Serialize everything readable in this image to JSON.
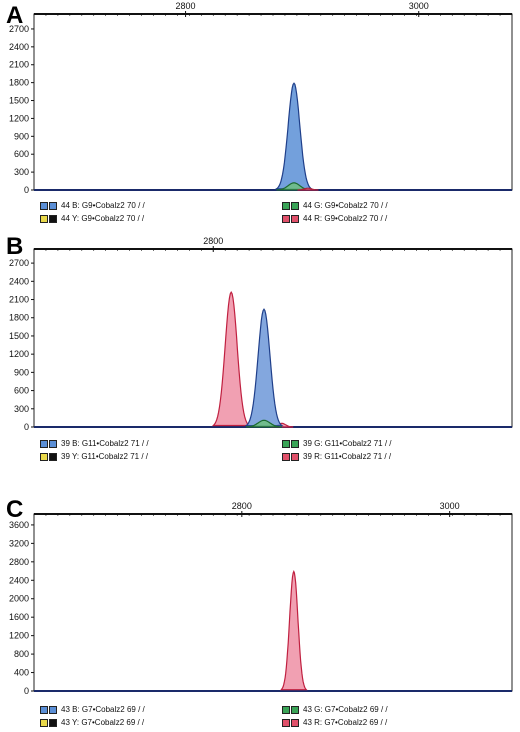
{
  "figure": {
    "panels": [
      {
        "letter": "A",
        "legend": [
          {
            "colors": [
              "#5b8fd6",
              "#5b8fd6"
            ],
            "text": "44 B: G9•Cobalz2 70 /  /"
          },
          {
            "colors": [
              "#e8d84a",
              "#111111"
            ],
            "text": "44 Y: G9•Cobalz2 70 /  /"
          },
          {
            "colors": [
              "#3aa457",
              "#3aa457"
            ],
            "text": "44 G: G9•Cobalz2 70 /  /"
          },
          {
            "colors": [
              "#e0506a",
              "#e0506a"
            ],
            "text": "44 R: G9•Cobalz2 70 /  /"
          }
        ]
      },
      {
        "letter": "B",
        "legend": [
          {
            "colors": [
              "#5b8fd6",
              "#5b8fd6"
            ],
            "text": "39 B: G11•Cobalz2 71 /  /"
          },
          {
            "colors": [
              "#e8d84a",
              "#111111"
            ],
            "text": "39 Y: G11•Cobalz2 71 /  /"
          },
          {
            "colors": [
              "#3aa457",
              "#3aa457"
            ],
            "text": "39 G: G11•Cobalz2 71 /  /"
          },
          {
            "colors": [
              "#e0506a",
              "#e0506a"
            ],
            "text": "39 R: G11•Cobalz2 71 /  /"
          }
        ]
      },
      {
        "letter": "C",
        "legend": [
          {
            "colors": [
              "#5b8fd6",
              "#5b8fd6"
            ],
            "text": "43 B: G7•Cobalz2 69 /  /"
          },
          {
            "colors": [
              "#e8d84a",
              "#111111"
            ],
            "text": "43 Y: G7•Cobalz2 69 /  /"
          },
          {
            "colors": [
              "#3aa457",
              "#3aa457"
            ],
            "text": "43 G: G7•Cobalz2 69 /  /"
          },
          {
            "colors": [
              "#e0506a",
              "#e0506a"
            ],
            "text": "43 R: G7•Cobalz2 69 /  /"
          }
        ]
      }
    ]
  },
  "chart_data": [
    {
      "type": "area",
      "panel": "A",
      "xlim": [
        2670,
        3080
      ],
      "x_ticks": [
        "2800",
        "3000"
      ],
      "x_tick_values": [
        2800,
        3000
      ],
      "ylim": [
        0,
        2850
      ],
      "y_ticks": [
        "0",
        "300",
        "600",
        "900",
        "1200",
        "1500",
        "1800",
        "2100",
        "2400",
        "2700"
      ],
      "y_tick_values": [
        0,
        300,
        600,
        900,
        1200,
        1500,
        1800,
        2100,
        2400,
        2700
      ],
      "grid": false,
      "series": [
        {
          "color": "#5b8fd6",
          "edge": "#1f3f8a",
          "peaks": [
            {
              "x": 2893,
              "height": 1790,
              "width": 5
            }
          ]
        },
        {
          "color": "#6fbf7f",
          "edge": "#1d6b30",
          "peaks": [
            {
              "x": 2893,
              "height": 120,
              "width": 5
            }
          ]
        },
        {
          "color": "#e88aa0",
          "edge": "#b0203c",
          "peaks": [
            {
              "x": 2905,
              "height": 30,
              "width": 3
            }
          ]
        }
      ]
    },
    {
      "type": "area",
      "panel": "B",
      "xlim": [
        2680,
        3000
      ],
      "x_ticks": [
        "2800"
      ],
      "x_tick_values": [
        2800
      ],
      "ylim": [
        0,
        2850
      ],
      "y_ticks": [
        "0",
        "300",
        "600",
        "900",
        "1200",
        "1500",
        "1800",
        "2100",
        "2400",
        "2700"
      ],
      "y_tick_values": [
        0,
        300,
        600,
        900,
        1200,
        1500,
        1800,
        2100,
        2400,
        2700
      ],
      "grid": false,
      "series": [
        {
          "color": "#ee8fa4",
          "edge": "#c02040",
          "peaks": [
            {
              "x": 2812,
              "height": 2220,
              "width": 4
            },
            {
              "x": 2846,
              "height": 60,
              "width": 2.5
            }
          ]
        },
        {
          "color": "#6d98d8",
          "edge": "#1f3f8a",
          "peaks": [
            {
              "x": 2834,
              "height": 1940,
              "width": 4
            }
          ]
        },
        {
          "color": "#6fbf7f",
          "edge": "#1d6b30",
          "peaks": [
            {
              "x": 2834,
              "height": 110,
              "width": 4
            }
          ]
        }
      ]
    },
    {
      "type": "area",
      "panel": "C",
      "xlim": [
        2600,
        3060
      ],
      "x_ticks": [
        "2800",
        "3000"
      ],
      "x_tick_values": [
        2800,
        3000
      ],
      "ylim": [
        0,
        3750
      ],
      "y_ticks": [
        "0",
        "400",
        "800",
        "1200",
        "1600",
        "2000",
        "2400",
        "2800",
        "3200",
        "3600"
      ],
      "y_tick_values": [
        0,
        400,
        800,
        1200,
        1600,
        2000,
        2400,
        2800,
        3200,
        3600
      ],
      "grid": false,
      "series": [
        {
          "color": "#ee8fa4",
          "edge": "#c02040",
          "peaks": [
            {
              "x": 2850,
              "height": 2590,
              "width": 4
            }
          ]
        }
      ]
    }
  ]
}
